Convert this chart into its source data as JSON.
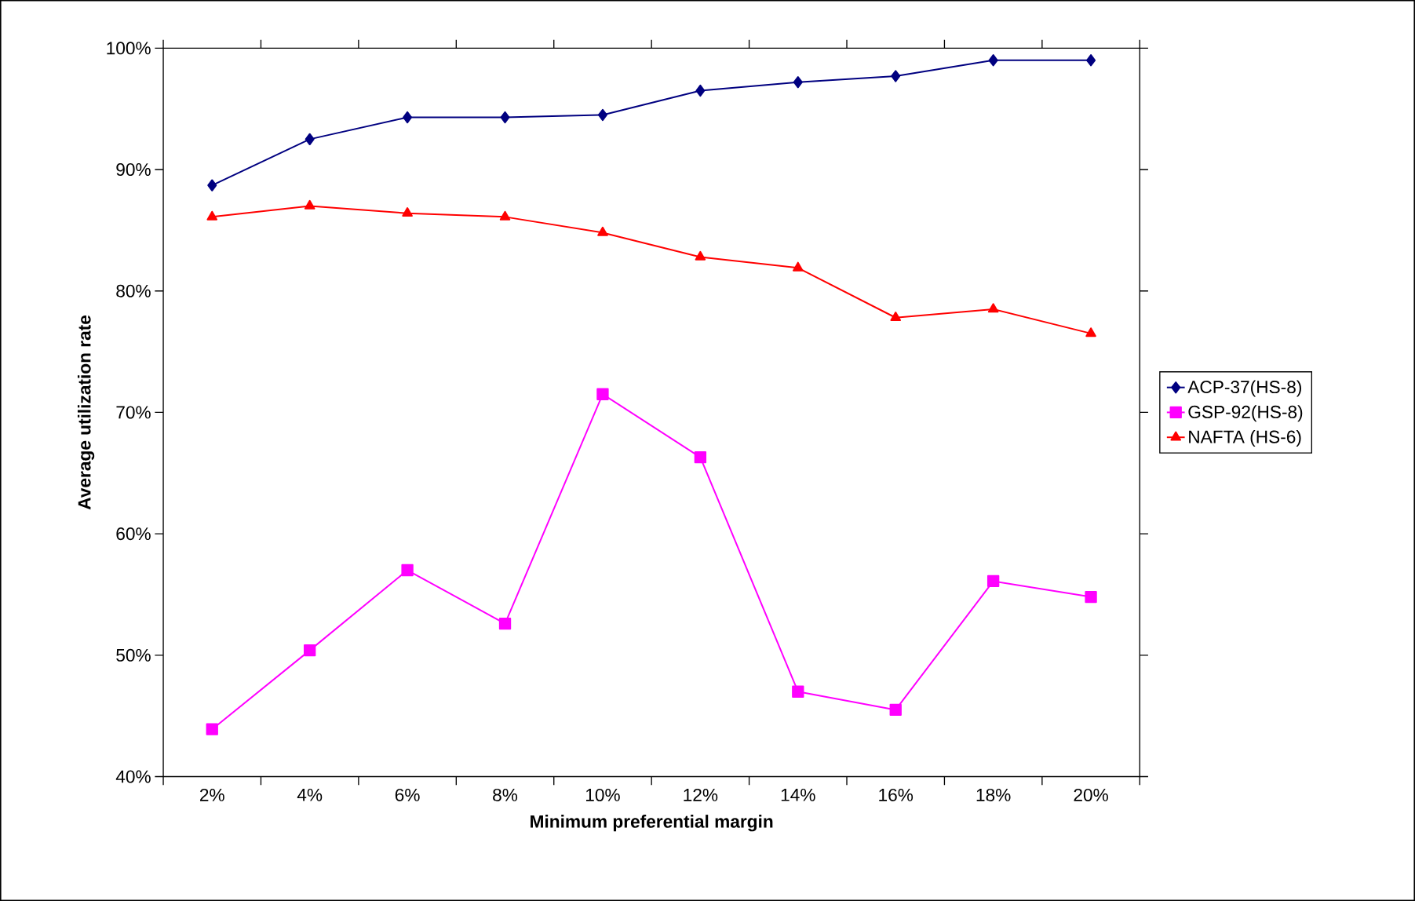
{
  "chart_data": {
    "type": "line",
    "xlabel": "Minimum preferential margin",
    "ylabel": "Average utilization rate",
    "categories": [
      "2%",
      "4%",
      "6%",
      "8%",
      "10%",
      "12%",
      "14%",
      "16%",
      "18%",
      "20%"
    ],
    "series": [
      {
        "name": "ACP-37(HS-8)",
        "color": "#000080",
        "marker": "diamond",
        "values": [
          88.7,
          92.5,
          94.3,
          94.3,
          94.5,
          96.5,
          97.2,
          97.7,
          99.0,
          99.0
        ]
      },
      {
        "name": "GSP-92(HS-8)",
        "color": "#ff00ff",
        "marker": "square",
        "values": [
          43.9,
          50.4,
          57.0,
          52.6,
          71.5,
          66.3,
          47.0,
          45.5,
          56.1,
          54.8
        ]
      },
      {
        "name": "NAFTA (HS-6)",
        "color": "#ff0000",
        "marker": "triangle",
        "values": [
          86.1,
          87.0,
          86.4,
          86.1,
          84.8,
          82.8,
          81.9,
          77.8,
          78.5,
          76.5
        ]
      }
    ],
    "ylim": [
      40,
      100
    ],
    "yticks": [
      {
        "value": 40,
        "label": "40%"
      },
      {
        "value": 50,
        "label": "50%"
      },
      {
        "value": 60,
        "label": "60%"
      },
      {
        "value": 70,
        "label": "70%"
      },
      {
        "value": 80,
        "label": "80%"
      },
      {
        "value": 90,
        "label": "90%"
      },
      {
        "value": 100,
        "label": "100%"
      }
    ],
    "grid": false,
    "legend": "right",
    "line_style": "solid"
  }
}
